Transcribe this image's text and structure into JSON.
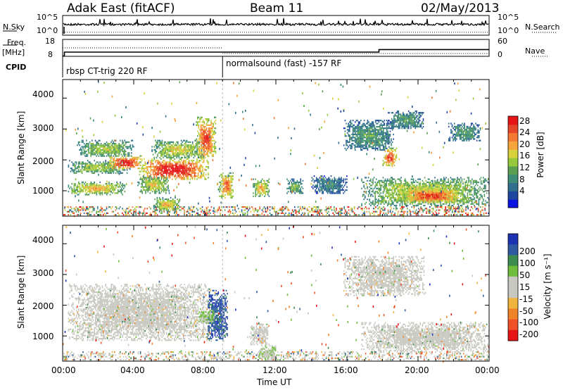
{
  "header": {
    "station": "Adak East (fitACF)",
    "beam": "Beam 11",
    "date": "02/May/2013"
  },
  "side_labels": {
    "nsky": "N.Sky",
    "nsearch": "N.Search",
    "freq": "Freq.",
    "freq_unit": "[MHz]",
    "nave": "Nave",
    "cpid": "CPID"
  },
  "noise_ticks": {
    "left_top": "10^5",
    "left_bottom": "10^0",
    "right_top": "10^5",
    "right_bottom": "10^0"
  },
  "freq_ticks": {
    "left_top": "18",
    "left_bottom": "8",
    "right_top": "60",
    "right_bottom": "0"
  },
  "cpid_blocks": [
    {
      "label": "rbsp CT-trig 220 RF",
      "start_hour": 0
    },
    {
      "label": "normalsound (fast) -157 RF",
      "start_hour": 9
    }
  ],
  "colors": {
    "power_scale": [
      "#0a14e0",
      "#1e46a0",
      "#2f6e8c",
      "#3c8c78",
      "#5aa050",
      "#96c83c",
      "#d7d23c",
      "#f5a53c",
      "#f57832",
      "#e64628",
      "#e61414"
    ],
    "velocity_scale": [
      "#1e32b4",
      "#2d5aa0",
      "#3c8c50",
      "#6ebe3c",
      "#c8c8c0",
      "#c8c8c0",
      "#f0b43c",
      "#f08228",
      "#f05028",
      "#e61414"
    ],
    "ground_scatter": "#c8c8c0"
  },
  "chart_data": [
    {
      "type": "heatmap",
      "panel": "power",
      "ylabel": "Slant Range [km]",
      "ylim": [
        180,
        4600
      ],
      "yticks": [
        1000,
        2000,
        3000,
        4000
      ],
      "xlim_hours": [
        0,
        24
      ],
      "colorbar": {
        "label": "Power [dB]",
        "ticks": [
          "4",
          "8",
          "12",
          "16",
          "20",
          "24",
          "28"
        ],
        "range": [
          0,
          30
        ]
      },
      "echo_regions": [
        {
          "t0": 0.3,
          "t1": 3.5,
          "r0": 880,
          "r1": 1300,
          "value": 18
        },
        {
          "t0": 0.3,
          "t1": 3.6,
          "r0": 1550,
          "r1": 2000,
          "value": 14
        },
        {
          "t0": 0.8,
          "t1": 4.0,
          "r0": 2100,
          "r1": 2650,
          "value": 14
        },
        {
          "t0": 2.5,
          "t1": 4.5,
          "r0": 1700,
          "r1": 2150,
          "value": 26
        },
        {
          "t0": 4.3,
          "t1": 8.2,
          "r0": 1350,
          "r1": 2050,
          "value": 27
        },
        {
          "t0": 5.0,
          "t1": 8.0,
          "r0": 2050,
          "r1": 2650,
          "value": 16
        },
        {
          "t0": 7.5,
          "t1": 8.6,
          "r0": 2000,
          "r1": 3400,
          "value": 24
        },
        {
          "t0": 4.2,
          "t1": 6.0,
          "r0": 900,
          "r1": 1500,
          "value": 16
        },
        {
          "t0": 5.1,
          "t1": 6.6,
          "r0": 350,
          "r1": 800,
          "value": 18
        },
        {
          "t0": 8.8,
          "t1": 9.6,
          "r0": 750,
          "r1": 1600,
          "value": 22
        },
        {
          "t0": 10.7,
          "t1": 11.6,
          "r0": 800,
          "r1": 1400,
          "value": 18
        },
        {
          "t0": 12.6,
          "t1": 13.5,
          "r0": 900,
          "r1": 1400,
          "value": 12
        },
        {
          "t0": 14.0,
          "t1": 16.0,
          "r0": 900,
          "r1": 1500,
          "value": 8
        },
        {
          "t0": 16.8,
          "t1": 24.0,
          "r0": 500,
          "r1": 1450,
          "value": 16
        },
        {
          "t0": 19.0,
          "t1": 22.5,
          "r0": 600,
          "r1": 1100,
          "value": 24
        },
        {
          "t0": 15.8,
          "t1": 18.6,
          "r0": 2300,
          "r1": 3300,
          "value": 10
        },
        {
          "t0": 18.0,
          "t1": 18.8,
          "r0": 1800,
          "r1": 2400,
          "value": 24
        },
        {
          "t0": 18.3,
          "t1": 20.3,
          "r0": 3000,
          "r1": 3600,
          "value": 10
        },
        {
          "t0": 21.7,
          "t1": 23.5,
          "r0": 2600,
          "r1": 3200,
          "value": 10
        }
      ]
    },
    {
      "type": "heatmap",
      "panel": "velocity",
      "ylabel": "Slant Range [km]",
      "xlabel": "Time UT",
      "ylim": [
        180,
        4600
      ],
      "yticks": [
        1000,
        2000,
        3000,
        4000
      ],
      "xlim_hours": [
        0,
        24
      ],
      "xticks": [
        "00:00",
        "04:00",
        "08:00",
        "12:00",
        "16:00",
        "20:00",
        "00:00"
      ],
      "colorbar": {
        "label": "Velocity [m s⁻¹]",
        "ticks": [
          "200",
          "100",
          "50",
          "15",
          "-15",
          "-50",
          "-100",
          "-200"
        ],
        "range": [
          -250,
          250
        ]
      },
      "echo_regions": [
        {
          "t0": 0.3,
          "t1": 8.3,
          "r0": 850,
          "r1": 2700,
          "value": 0,
          "ground": true
        },
        {
          "t0": 8.1,
          "t1": 9.3,
          "r0": 850,
          "r1": 2500,
          "value": 180
        },
        {
          "t0": 7.6,
          "t1": 8.6,
          "r0": 1400,
          "r1": 1900,
          "value": 60
        },
        {
          "t0": 10.5,
          "t1": 11.6,
          "r0": 700,
          "r1": 1400,
          "value": 0,
          "ground": true
        },
        {
          "t0": 11.0,
          "t1": 12.0,
          "r0": 200,
          "r1": 700,
          "value": 40
        },
        {
          "t0": 16.8,
          "t1": 24.0,
          "r0": 500,
          "r1": 1450,
          "value": 0,
          "ground": true
        },
        {
          "t0": 15.8,
          "t1": 20.3,
          "r0": 2300,
          "r1": 3600,
          "value": 0,
          "ground": true
        }
      ]
    }
  ],
  "noise_trace": {
    "sky_level": 0.55,
    "search_level": 0.15
  },
  "freq_trace": [
    {
      "start_hour": 0.0,
      "end_hour": 0.1,
      "freq_mhz": 8.2
    },
    {
      "start_hour": 0.1,
      "end_hour": 17.8,
      "freq_mhz": 10.5
    },
    {
      "start_hour": 17.8,
      "end_hour": 24.0,
      "freq_mhz": 12.0
    }
  ],
  "nave_trace": [
    {
      "start_hour": 0.0,
      "end_hour": 9.0,
      "nave": 30
    },
    {
      "start_hour": 9.0,
      "end_hour": 24.0,
      "nave": 10
    }
  ]
}
